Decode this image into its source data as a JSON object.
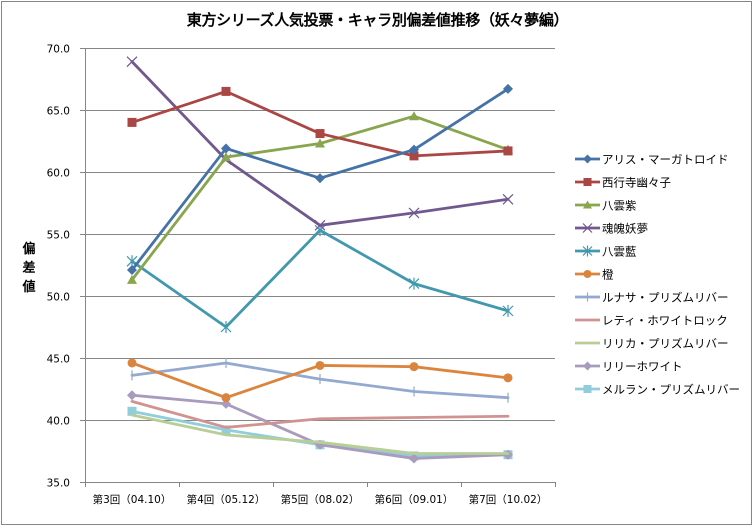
{
  "chart_data": {
    "type": "line",
    "title": "東方シリーズ人気投票・キャラ別偏差値推移（妖々夢編）",
    "xlabel": "",
    "ylabel": "偏差値",
    "ylim": [
      35.0,
      70.0
    ],
    "ytick_step": 5.0,
    "yticks": [
      "70.0",
      "65.0",
      "60.0",
      "55.0",
      "50.0",
      "45.0",
      "40.0",
      "35.0"
    ],
    "grid": true,
    "legend_position": "right",
    "categories": [
      "第3回（04.10）",
      "第4回（05.12）",
      "第5回（08.02）",
      "第6回（09.01）",
      "第7回（10.02）"
    ],
    "series": [
      {
        "name": "アリス・マーガトロイド",
        "color": "#4572A7",
        "marker": "diamond",
        "values": [
          52.1,
          61.9,
          59.5,
          61.8,
          66.7
        ]
      },
      {
        "name": "西行寺幽々子",
        "color": "#AA4643",
        "marker": "square",
        "values": [
          64.0,
          66.5,
          63.1,
          61.3,
          61.7
        ]
      },
      {
        "name": "八雲紫",
        "color": "#89A54E",
        "marker": "triangle",
        "values": [
          51.3,
          61.2,
          62.3,
          64.5,
          61.8
        ]
      },
      {
        "name": "魂魄妖夢",
        "color": "#71588F",
        "marker": "x",
        "values": [
          68.9,
          61.0,
          55.7,
          56.7,
          57.8
        ]
      },
      {
        "name": "八雲藍",
        "color": "#4198AF",
        "marker": "star",
        "values": [
          52.8,
          47.5,
          55.3,
          51.0,
          48.8
        ]
      },
      {
        "name": "橙",
        "color": "#DB843D",
        "marker": "circle",
        "values": [
          44.6,
          41.8,
          44.4,
          44.3,
          43.4
        ]
      },
      {
        "name": "ルナサ・プリズムリバー",
        "color": "#93A9CF",
        "marker": "plus",
        "values": [
          43.6,
          44.6,
          43.3,
          42.3,
          41.8
        ]
      },
      {
        "name": "レティ・ホワイトロック",
        "color": "#D19392",
        "marker": "none",
        "values": [
          41.5,
          39.4,
          40.1,
          40.2,
          40.3
        ]
      },
      {
        "name": "リリカ・プリズムリバー",
        "color": "#B9CD96",
        "marker": "none",
        "values": [
          40.4,
          38.8,
          38.2,
          37.3,
          37.3
        ]
      },
      {
        "name": "リリーホワイト",
        "color": "#A99BBD",
        "marker": "diamond",
        "values": [
          42.0,
          41.3,
          38.0,
          36.9,
          37.2
        ]
      },
      {
        "name": "メルラン・プリズムリバー",
        "color": "#92CDDC",
        "marker": "square",
        "values": [
          40.7,
          39.2,
          38.0,
          37.1,
          37.2
        ]
      }
    ]
  }
}
